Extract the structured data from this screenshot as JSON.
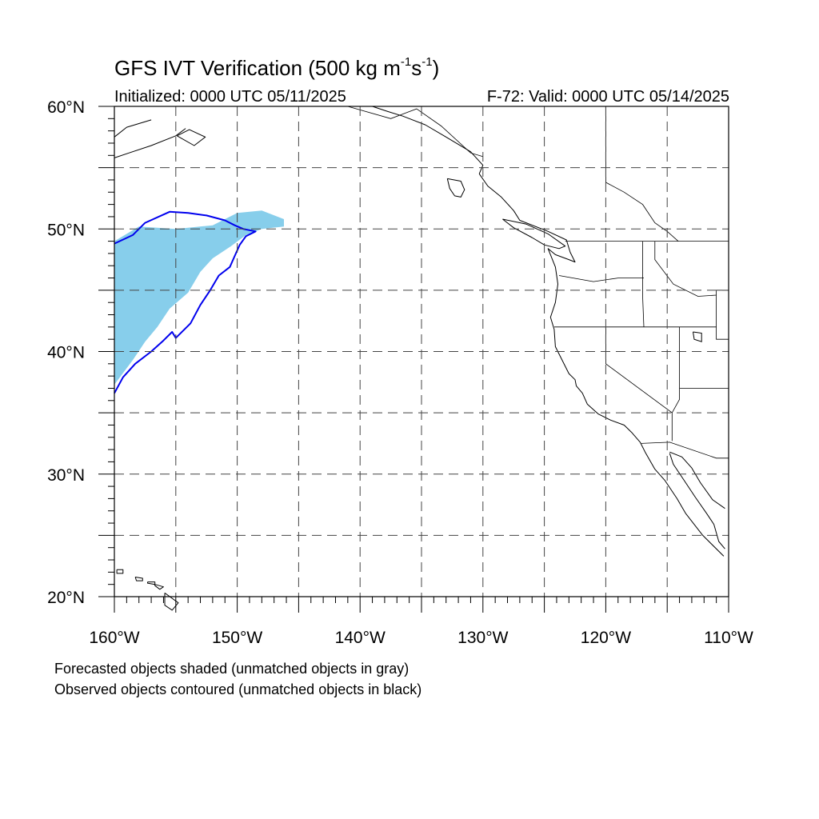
{
  "header": {
    "title_prefix": "GFS IVT Verification (500 kg m",
    "title_exp1": "-1",
    "title_mid": "s",
    "title_exp2": "-1",
    "title_suffix": ")",
    "initialized": "Initialized: 0000 UTC 05/11/2025",
    "valid": "F-72: Valid: 0000 UTC 05/14/2025"
  },
  "map": {
    "projection": "cylindrical-equidistant",
    "lon_range": [
      -160,
      -110
    ],
    "lat_range": [
      20,
      60
    ],
    "grid_lons": [
      -155,
      -150,
      -145,
      -140,
      -135,
      -130,
      -125,
      -120,
      -115
    ],
    "grid_lats": [
      25,
      30,
      35,
      40,
      45,
      50,
      55
    ],
    "lat_labels": [
      {
        "value": 20,
        "text": "20°N"
      },
      {
        "value": 30,
        "text": "30°N"
      },
      {
        "value": 40,
        "text": "40°N"
      },
      {
        "value": 50,
        "text": "50°N"
      },
      {
        "value": 60,
        "text": "60°N"
      }
    ],
    "lon_labels": [
      {
        "value": -160,
        "text": "160°W"
      },
      {
        "value": -150,
        "text": "150°W"
      },
      {
        "value": -140,
        "text": "140°W"
      },
      {
        "value": -130,
        "text": "130°W"
      },
      {
        "value": -120,
        "text": "120°W"
      },
      {
        "value": -110,
        "text": "110°W"
      }
    ],
    "colors": {
      "forecast_fill": "#87ceeb",
      "observed_contour": "#0000ee",
      "coastline": "#000000",
      "grid": "#444444"
    },
    "forecast_object": [
      [
        -160,
        49.0
      ],
      [
        -158,
        50.2
      ],
      [
        -155,
        50.0
      ],
      [
        -152,
        50.3
      ],
      [
        -150,
        51.3
      ],
      [
        -148,
        51.5
      ],
      [
        -146.2,
        50.8
      ],
      [
        -146.2,
        50.2
      ],
      [
        -148,
        50.0
      ],
      [
        -149.3,
        49.5
      ],
      [
        -150.5,
        48.6
      ],
      [
        -152,
        47.6
      ],
      [
        -153,
        46.5
      ],
      [
        -154,
        44.8
      ],
      [
        -155.5,
        43.5
      ],
      [
        -156.5,
        42.0
      ],
      [
        -157.5,
        40.8
      ],
      [
        -158.5,
        39.3
      ],
      [
        -160,
        37.3
      ]
    ],
    "observed_object": [
      [
        -160,
        48.8
      ],
      [
        -158.5,
        49.5
      ],
      [
        -157.5,
        50.5
      ],
      [
        -155.5,
        51.4
      ],
      [
        -154,
        51.3
      ],
      [
        -152.5,
        51.1
      ],
      [
        -151,
        50.7
      ],
      [
        -150.2,
        50.3
      ],
      [
        -149.5,
        50.0
      ],
      [
        -148.5,
        49.8
      ],
      [
        -149.3,
        49.4
      ],
      [
        -149.8,
        48.7
      ],
      [
        -150.2,
        47.8
      ],
      [
        -150.6,
        46.9
      ],
      [
        -151.5,
        46.2
      ],
      [
        -152.2,
        45.0
      ],
      [
        -153.0,
        43.8
      ],
      [
        -153.8,
        42.3
      ],
      [
        -155.0,
        41.1
      ],
      [
        -155.3,
        41.6
      ],
      [
        -156.0,
        40.9
      ],
      [
        -157.0,
        40.0
      ],
      [
        -158.3,
        39.0
      ],
      [
        -159.3,
        37.9
      ],
      [
        -160,
        36.6
      ]
    ],
    "coastlines": [
      [
        [
          -130.3,
          54.5
        ],
        [
          -130.0,
          55.2
        ],
        [
          -131.0,
          56.3
        ],
        [
          -133.0,
          57.5
        ],
        [
          -134.7,
          58.5
        ],
        [
          -136.5,
          59.2
        ],
        [
          -137.8,
          59.6
        ],
        [
          -139.0,
          60.0
        ]
      ],
      [
        [
          -130.3,
          54.5
        ],
        [
          -129.6,
          53.5
        ],
        [
          -128.5,
          52.6
        ],
        [
          -127.5,
          51.5
        ],
        [
          -127.0,
          50.7
        ],
        [
          -124.7,
          49.8
        ],
        [
          -123.2,
          49.1
        ],
        [
          -122.9,
          48.1
        ],
        [
          -122.5,
          47.3
        ],
        [
          -123.0,
          47.5
        ],
        [
          -124.1,
          47.9
        ],
        [
          -124.7,
          48.4
        ],
        [
          -124.1,
          46.9
        ],
        [
          -124.0,
          46.2
        ],
        [
          -123.9,
          45.5
        ],
        [
          -124.1,
          44.0
        ],
        [
          -124.5,
          42.8
        ],
        [
          -124.2,
          41.8
        ],
        [
          -124.1,
          40.4
        ],
        [
          -123.8,
          39.8
        ],
        [
          -123.0,
          38.2
        ],
        [
          -122.5,
          37.7
        ],
        [
          -122.4,
          37.2
        ],
        [
          -121.9,
          36.6
        ],
        [
          -121.5,
          35.7
        ],
        [
          -120.6,
          34.9
        ],
        [
          -119.6,
          34.4
        ],
        [
          -118.5,
          34.0
        ],
        [
          -117.9,
          33.4
        ],
        [
          -117.2,
          32.6
        ],
        [
          -116.8,
          31.8
        ],
        [
          -116.0,
          30.4
        ],
        [
          -115.2,
          29.5
        ],
        [
          -114.2,
          28.0
        ],
        [
          -113.5,
          26.8
        ],
        [
          -112.1,
          25.0
        ],
        [
          -110.4,
          23.3
        ]
      ],
      [
        [
          -114.8,
          31.7
        ],
        [
          -114.5,
          30.8
        ],
        [
          -113.7,
          29.6
        ],
        [
          -112.7,
          28.1
        ],
        [
          -111.8,
          26.8
        ],
        [
          -111.2,
          25.9
        ],
        [
          -110.8,
          24.5
        ],
        [
          -110.3,
          23.9
        ]
      ],
      [
        [
          -114.8,
          31.8
        ],
        [
          -113.8,
          31.4
        ],
        [
          -113.0,
          30.5
        ],
        [
          -112.3,
          29.3
        ],
        [
          -111.3,
          27.9
        ],
        [
          -110.3,
          27.2
        ]
      ],
      [
        [
          -128.4,
          50.8
        ],
        [
          -127.5,
          50.1
        ],
        [
          -126.0,
          49.3
        ],
        [
          -125.0,
          48.7
        ],
        [
          -123.8,
          48.4
        ],
        [
          -123.3,
          48.6
        ],
        [
          -124.7,
          49.6
        ],
        [
          -126.5,
          50.4
        ],
        [
          -128.4,
          50.8
        ]
      ],
      [
        [
          -132.9,
          54.1
        ],
        [
          -131.8,
          53.9
        ],
        [
          -131.5,
          53.2
        ],
        [
          -131.8,
          52.6
        ],
        [
          -132.3,
          52.7
        ],
        [
          -132.7,
          53.3
        ],
        [
          -132.9,
          54.1
        ]
      ],
      [
        [
          -160,
          57.5
        ],
        [
          -159.0,
          58.3
        ],
        [
          -158.0,
          58.6
        ],
        [
          -157.0,
          58.9
        ]
      ],
      [
        [
          -160,
          55.8
        ],
        [
          -158.8,
          56.2
        ],
        [
          -157.0,
          56.8
        ],
        [
          -155.0,
          57.6
        ],
        [
          -154.2,
          58.2
        ]
      ],
      [
        [
          -154.9,
          57.6
        ],
        [
          -153.5,
          56.8
        ],
        [
          -152.6,
          57.5
        ],
        [
          -153.9,
          58.1
        ],
        [
          -154.9,
          57.6
        ]
      ],
      [
        [
          -159.8,
          22.2
        ],
        [
          -159.3,
          22.2
        ],
        [
          -159.3,
          21.9
        ],
        [
          -159.8,
          21.9
        ],
        [
          -159.8,
          22.2
        ]
      ],
      [
        [
          -158.3,
          21.6
        ],
        [
          -157.7,
          21.5
        ],
        [
          -157.7,
          21.3
        ],
        [
          -158.2,
          21.3
        ],
        [
          -158.3,
          21.6
        ]
      ],
      [
        [
          -157.3,
          21.2
        ],
        [
          -156.7,
          21.2
        ],
        [
          -156.7,
          21.0
        ],
        [
          -157.3,
          21.1
        ],
        [
          -157.3,
          21.2
        ]
      ],
      [
        [
          -156.7,
          21.0
        ],
        [
          -156.0,
          20.8
        ],
        [
          -156.3,
          20.6
        ],
        [
          -156.7,
          20.9
        ],
        [
          -156.7,
          21.0
        ]
      ],
      [
        [
          -155.9,
          20.3
        ],
        [
          -154.8,
          19.5
        ],
        [
          -155.3,
          18.9
        ],
        [
          -155.9,
          19.3
        ],
        [
          -155.9,
          20.3
        ]
      ]
    ],
    "borders": [
      [
        [
          -123.3,
          49.0
        ],
        [
          -110,
          49.0
        ]
      ],
      [
        [
          -124.2,
          42.0
        ],
        [
          -117.0,
          42.0
        ],
        [
          -111.0,
          42.0
        ]
      ],
      [
        [
          -120.0,
          42.0
        ],
        [
          -120.0,
          39.0
        ],
        [
          -114.6,
          35.0
        ]
      ],
      [
        [
          -123.8,
          46.2
        ],
        [
          -121.0,
          45.7
        ],
        [
          -119.0,
          46.0
        ],
        [
          -116.9,
          46.0
        ]
      ],
      [
        [
          -117.0,
          49.0
        ],
        [
          -117.0,
          44.5
        ],
        [
          -116.9,
          42.0
        ]
      ],
      [
        [
          -116.0,
          49.0
        ],
        [
          -116.0,
          47.5
        ],
        [
          -114.5,
          45.5
        ],
        [
          -112.5,
          44.5
        ],
        [
          -111.0,
          44.6
        ]
      ],
      [
        [
          -114.0,
          42.0
        ],
        [
          -114.0,
          36.1
        ],
        [
          -114.6,
          35.0
        ],
        [
          -114.6,
          32.7
        ]
      ],
      [
        [
          -117.1,
          32.5
        ],
        [
          -114.8,
          32.6
        ],
        [
          -111.0,
          31.3
        ],
        [
          -110,
          31.3
        ]
      ],
      [
        [
          -114.0,
          37.0
        ],
        [
          -110,
          37.0
        ]
      ],
      [
        [
          -111.0,
          45.0
        ],
        [
          -110,
          45.0
        ]
      ],
      [
        [
          -111.0,
          45.0
        ],
        [
          -111.0,
          41.0
        ],
        [
          -110,
          41.0
        ]
      ],
      [
        [
          -120.0,
          60.0
        ],
        [
          -120.0,
          53.8
        ],
        [
          -118.5,
          53.0
        ],
        [
          -117.0,
          52.0
        ],
        [
          -116.0,
          50.5
        ],
        [
          -115.0,
          49.8
        ],
        [
          -114.1,
          49.0
        ]
      ],
      [
        [
          -141.0,
          60.0
        ],
        [
          -137.5,
          59.0
        ],
        [
          -135.4,
          59.8
        ],
        [
          -133.4,
          58.4
        ],
        [
          -131.0,
          56.2
        ],
        [
          -130.0,
          55.9
        ]
      ]
    ],
    "lakes": [
      [
        [
          -112.9,
          41.6
        ],
        [
          -112.2,
          41.5
        ],
        [
          -112.2,
          40.8
        ],
        [
          -112.8,
          41.0
        ],
        [
          -112.9,
          41.6
        ]
      ]
    ]
  },
  "footnotes": {
    "line1": "Forecasted objects shaded (unmatched objects in gray)",
    "line2": "Observed objects contoured (unmatched objects in black)"
  }
}
